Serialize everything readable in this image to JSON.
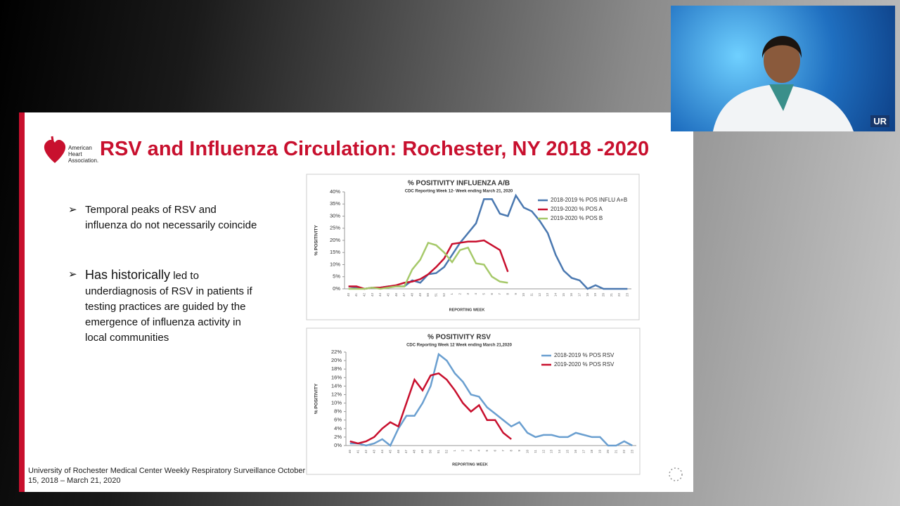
{
  "slide": {
    "logo": "American Heart Association.",
    "title": "RSV and Influenza Circulation: Rochester, NY 2018 -2020",
    "bullets": [
      {
        "lead": "",
        "text": "Temporal peaks of RSV and influenza do not necessarily coincide"
      },
      {
        "lead": "Has historically",
        "text": "led to underdiagnosis of RSV in patients if testing practices are guided by the emergence of influenza activity in local communities"
      }
    ],
    "footer": "University of Rochester Medical Center Weekly Respiratory Surveillance October 15, 2018 – March 21, 2020"
  },
  "video": {
    "logo": "UR"
  },
  "chart_data": [
    {
      "type": "line",
      "title": "% POSITIVITY INFLUENZA A/B",
      "subtitle": "CDC Reporting Week 12-  Week ending March 21, 2020",
      "y_label": "% POSITIVITY",
      "x_label": "REPORTING WEEK",
      "categories": [
        "40",
        "41",
        "42",
        "43",
        "44",
        "45",
        "46",
        "47",
        "48",
        "49",
        "50",
        "51",
        "52",
        "1",
        "2",
        "3",
        "4",
        "5",
        "6",
        "7",
        "8",
        "9",
        "10",
        "11",
        "12",
        "13",
        "14",
        "15",
        "16",
        "17",
        "18",
        "19",
        "20",
        "21",
        "22",
        "23"
      ],
      "ylim": [
        0,
        40
      ],
      "yticks": [
        {
          "value": 0,
          "label": "0%"
        },
        {
          "value": 5,
          "label": "5%"
        },
        {
          "value": 10,
          "label": "10%"
        },
        {
          "value": 15,
          "label": "15%"
        },
        {
          "value": 20,
          "label": "20%"
        },
        {
          "value": 25,
          "label": "25%"
        },
        {
          "value": 30,
          "label": "30%"
        },
        {
          "value": 35,
          "label": "35%"
        },
        {
          "value": 40,
          "label": "40%"
        }
      ],
      "series": [
        {
          "name": "2018-2019 % POS INFLU A+B",
          "color": "#4a78b0",
          "values": [
            1,
            0.5,
            0,
            0.5,
            0.5,
            1,
            1,
            1,
            3.5,
            2.5,
            6,
            6.5,
            9,
            14,
            19,
            23,
            27,
            37,
            37,
            31,
            30,
            38.5,
            33.5,
            32,
            28,
            23,
            14,
            7.5,
            4.5,
            3.5,
            0,
            1.5,
            0,
            0,
            0,
            0
          ]
        },
        {
          "name": "2019-2020 % POS A",
          "color": "#c8102e",
          "values": [
            1,
            1,
            0,
            0.5,
            0.5,
            1,
            1.5,
            2.5,
            3,
            4,
            6,
            9,
            12.5,
            18.5,
            19,
            19.5,
            19.5,
            20,
            18,
            16,
            7,
            null,
            null,
            null,
            null,
            null,
            null,
            null,
            null,
            null,
            null,
            null,
            null,
            null,
            null,
            null
          ]
        },
        {
          "name": "2019-2020 % POS B",
          "color": "#a6c96a",
          "values": [
            0,
            0,
            0,
            0.5,
            0,
            0.5,
            1,
            1,
            8,
            12,
            19,
            18,
            15,
            11,
            16,
            17,
            10.5,
            10,
            5,
            3,
            2.5,
            null,
            null,
            null,
            null,
            null,
            null,
            null,
            null,
            null,
            null,
            null,
            null,
            null,
            null,
            null
          ]
        }
      ]
    },
    {
      "type": "line",
      "title": "% POSITIVITY RSV",
      "subtitle": "CDC Reporting Week 12 Week ending March 21,2020",
      "y_label": "% POSITIVITY",
      "x_label": "REPORTING WEEK",
      "categories": [
        "40",
        "41",
        "42",
        "43",
        "44",
        "45",
        "46",
        "47",
        "48",
        "49",
        "50",
        "51",
        "52",
        "1",
        "2",
        "3",
        "4",
        "5",
        "6",
        "7",
        "8",
        "9",
        "10",
        "11",
        "12",
        "13",
        "14",
        "15",
        "16",
        "17",
        "18",
        "19",
        "20",
        "21",
        "22",
        "23"
      ],
      "ylim": [
        0,
        22
      ],
      "yticks": [
        {
          "value": 0,
          "label": "0%"
        },
        {
          "value": 2,
          "label": "2%"
        },
        {
          "value": 4,
          "label": "4%"
        },
        {
          "value": 6,
          "label": "6%"
        },
        {
          "value": 8,
          "label": "8%"
        },
        {
          "value": 10,
          "label": "10%"
        },
        {
          "value": 12,
          "label": "12%"
        },
        {
          "value": 14,
          "label": "14%"
        },
        {
          "value": 16,
          "label": "16%"
        },
        {
          "value": 18,
          "label": "18%"
        },
        {
          "value": 20,
          "label": "20%"
        },
        {
          "value": 22,
          "label": "22%"
        }
      ],
      "series": [
        {
          "name": "2018-2019 % POS RSV",
          "color": "#6a9fd0",
          "values": [
            0.5,
            0.5,
            0,
            0.5,
            1.5,
            0,
            4,
            7,
            7,
            10,
            14,
            21.5,
            20,
            17,
            15,
            12,
            11.5,
            9,
            7.5,
            6,
            4.5,
            5.5,
            3,
            2,
            2.5,
            2.5,
            2,
            2,
            3,
            2.5,
            2,
            2,
            0,
            0,
            1,
            0
          ]
        },
        {
          "name": "2019-2020 % POS RSV",
          "color": "#c8102e",
          "values": [
            1,
            0.5,
            1,
            2,
            4,
            5.5,
            4.5,
            10,
            15.5,
            13,
            16.5,
            17,
            15.5,
            13,
            10,
            8,
            9.5,
            6,
            6,
            3,
            1.5,
            null,
            null,
            null,
            null,
            null,
            null,
            null,
            null,
            null,
            null,
            null,
            null,
            null,
            null,
            null
          ]
        }
      ]
    }
  ]
}
